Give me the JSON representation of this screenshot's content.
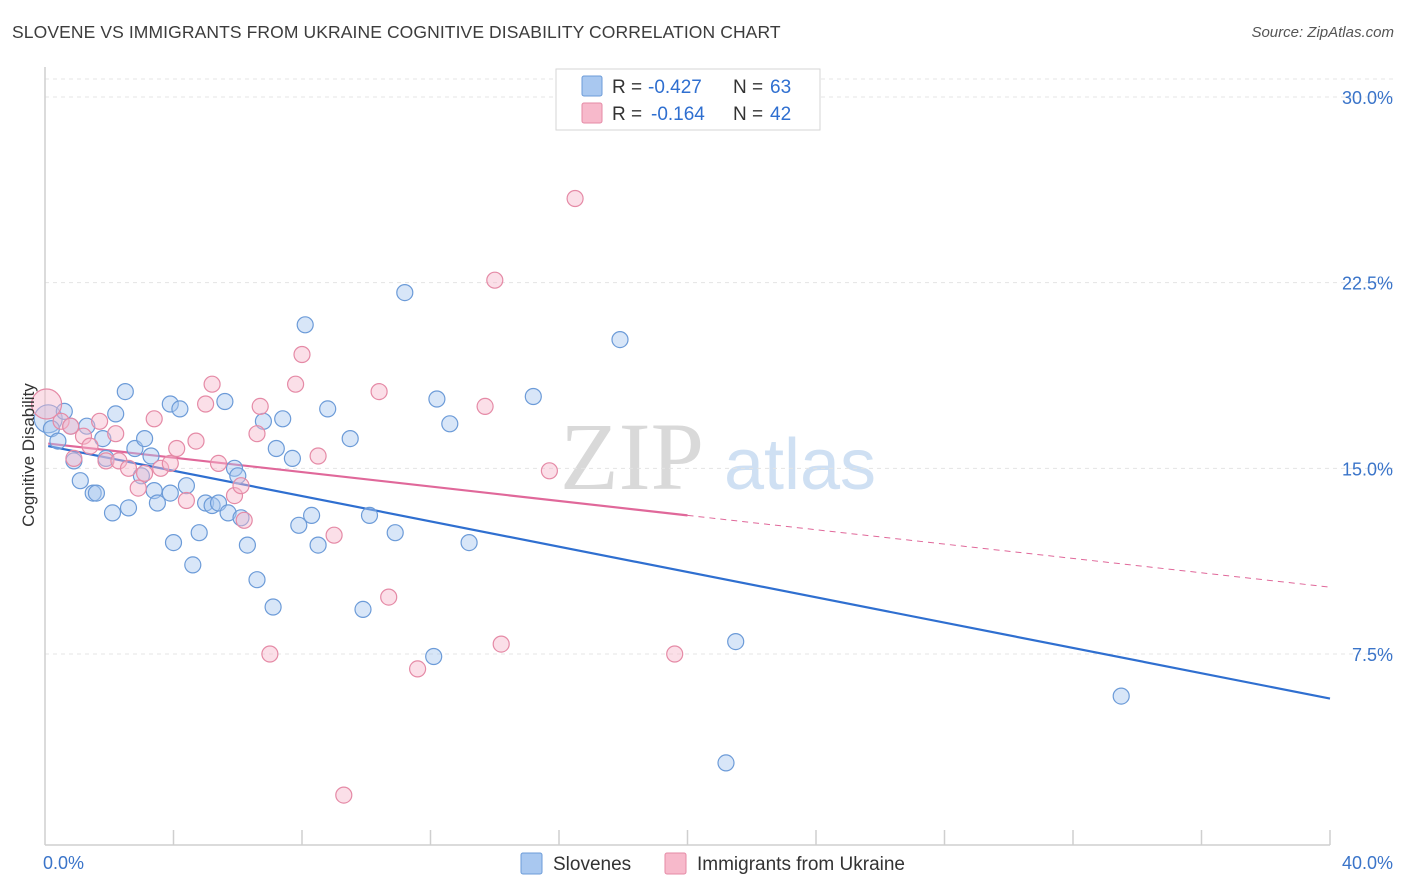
{
  "title": "SLOVENE VS IMMIGRANTS FROM UKRAINE COGNITIVE DISABILITY CORRELATION CHART",
  "source": "Source: ZipAtlas.com",
  "watermark": {
    "zip": "ZIP",
    "atlas": "atlas"
  },
  "chart_data": {
    "type": "scatter",
    "title": "SLOVENE VS IMMIGRANTS FROM UKRAINE COGNITIVE DISABILITY CORRELATION CHART",
    "xlabel": "",
    "ylabel": "Cognitive Disability",
    "xlim": [
      0,
      40
    ],
    "ylim": [
      0,
      30
    ],
    "x_tick_labels": {
      "left": "0.0%",
      "right": "40.0%"
    },
    "y_ticks": [
      {
        "value": 7.5,
        "label": "7.5%"
      },
      {
        "value": 15.0,
        "label": "15.0%"
      },
      {
        "value": 22.5,
        "label": "22.5%"
      },
      {
        "value": 30.0,
        "label": "30.0%"
      }
    ],
    "x_minor_ticks": [
      4,
      8,
      12,
      16,
      20,
      24,
      28,
      32,
      36,
      40
    ],
    "legend_top": [
      {
        "r_label": "R =",
        "r_value": "-0.427",
        "n_label": "N =",
        "n_value": "63"
      },
      {
        "r_label": "R =",
        "r_value": "-0.164",
        "n_label": "N =",
        "n_value": "42"
      }
    ],
    "series": [
      {
        "name": "Slovenes",
        "color": "#a9c8f0",
        "stroke": "#6c9bd8",
        "line_color": "#2f6fd0",
        "trend": {
          "x0": 0.1,
          "y0": 15.9,
          "x1": 40.0,
          "y1": 5.7,
          "dashed_from": null
        },
        "points": [
          [
            0.1,
            17.0
          ],
          [
            0.2,
            16.6
          ],
          [
            0.4,
            16.1
          ],
          [
            0.6,
            17.3
          ],
          [
            0.8,
            16.7
          ],
          [
            0.9,
            15.3
          ],
          [
            1.1,
            14.5
          ],
          [
            1.3,
            16.7
          ],
          [
            1.5,
            14.0
          ],
          [
            1.6,
            14.0
          ],
          [
            1.8,
            16.2
          ],
          [
            1.9,
            15.4
          ],
          [
            2.1,
            13.2
          ],
          [
            2.2,
            17.2
          ],
          [
            2.5,
            18.1
          ],
          [
            2.6,
            13.4
          ],
          [
            2.8,
            15.8
          ],
          [
            3.0,
            14.7
          ],
          [
            3.1,
            16.2
          ],
          [
            3.3,
            15.5
          ],
          [
            3.4,
            14.1
          ],
          [
            3.5,
            13.6
          ],
          [
            3.9,
            14.0
          ],
          [
            3.9,
            17.6
          ],
          [
            4.0,
            12.0
          ],
          [
            4.2,
            17.4
          ],
          [
            4.4,
            14.3
          ],
          [
            4.6,
            11.1
          ],
          [
            4.8,
            12.4
          ],
          [
            5.0,
            13.6
          ],
          [
            5.2,
            13.5
          ],
          [
            5.4,
            13.6
          ],
          [
            5.6,
            17.7
          ],
          [
            5.7,
            13.2
          ],
          [
            5.9,
            15.0
          ],
          [
            6.0,
            14.7
          ],
          [
            6.1,
            13.0
          ],
          [
            6.3,
            11.9
          ],
          [
            6.6,
            10.5
          ],
          [
            6.8,
            16.9
          ],
          [
            7.1,
            9.4
          ],
          [
            7.2,
            15.8
          ],
          [
            7.4,
            17.0
          ],
          [
            7.7,
            15.4
          ],
          [
            7.9,
            12.7
          ],
          [
            8.1,
            20.8
          ],
          [
            8.3,
            13.1
          ],
          [
            8.5,
            11.9
          ],
          [
            8.8,
            17.4
          ],
          [
            9.5,
            16.2
          ],
          [
            9.9,
            9.3
          ],
          [
            10.1,
            13.1
          ],
          [
            10.9,
            12.4
          ],
          [
            11.2,
            22.1
          ],
          [
            12.1,
            7.4
          ],
          [
            12.2,
            17.8
          ],
          [
            12.6,
            16.8
          ],
          [
            13.2,
            12.0
          ],
          [
            15.2,
            17.9
          ],
          [
            17.9,
            20.2
          ],
          [
            21.2,
            3.1
          ],
          [
            21.5,
            8.0
          ],
          [
            33.5,
            5.8
          ]
        ]
      },
      {
        "name": "Immigrants from Ukraine",
        "color": "#f7b9cb",
        "stroke": "#e58aa6",
        "line_color": "#e0689a",
        "trend": {
          "x0": 0.1,
          "y0": 16.0,
          "x1": 20.0,
          "y1": 13.1,
          "dashed_to": 40.0,
          "dashed_y": 10.2
        },
        "points": [
          [
            0.05,
            17.6
          ],
          [
            0.5,
            16.9
          ],
          [
            0.8,
            16.7
          ],
          [
            0.9,
            15.4
          ],
          [
            1.2,
            16.3
          ],
          [
            1.4,
            15.9
          ],
          [
            1.7,
            16.9
          ],
          [
            1.9,
            15.3
          ],
          [
            2.2,
            16.4
          ],
          [
            2.3,
            15.3
          ],
          [
            2.6,
            15.0
          ],
          [
            2.9,
            14.2
          ],
          [
            3.1,
            14.8
          ],
          [
            3.4,
            17.0
          ],
          [
            3.6,
            15.0
          ],
          [
            3.9,
            15.2
          ],
          [
            4.1,
            15.8
          ],
          [
            4.4,
            13.7
          ],
          [
            4.7,
            16.1
          ],
          [
            5.0,
            17.6
          ],
          [
            5.2,
            18.4
          ],
          [
            5.4,
            15.2
          ],
          [
            5.9,
            13.9
          ],
          [
            6.1,
            14.3
          ],
          [
            6.2,
            12.9
          ],
          [
            6.6,
            16.4
          ],
          [
            6.7,
            17.5
          ],
          [
            7.0,
            7.5
          ],
          [
            7.8,
            18.4
          ],
          [
            8.0,
            19.6
          ],
          [
            8.5,
            15.5
          ],
          [
            9.0,
            12.3
          ],
          [
            9.3,
            1.8
          ],
          [
            10.4,
            18.1
          ],
          [
            10.7,
            9.8
          ],
          [
            11.6,
            6.9
          ],
          [
            13.7,
            17.5
          ],
          [
            14.0,
            22.6
          ],
          [
            14.2,
            7.9
          ],
          [
            15.7,
            14.9
          ],
          [
            16.5,
            25.9
          ],
          [
            19.6,
            7.5
          ]
        ]
      }
    ]
  }
}
